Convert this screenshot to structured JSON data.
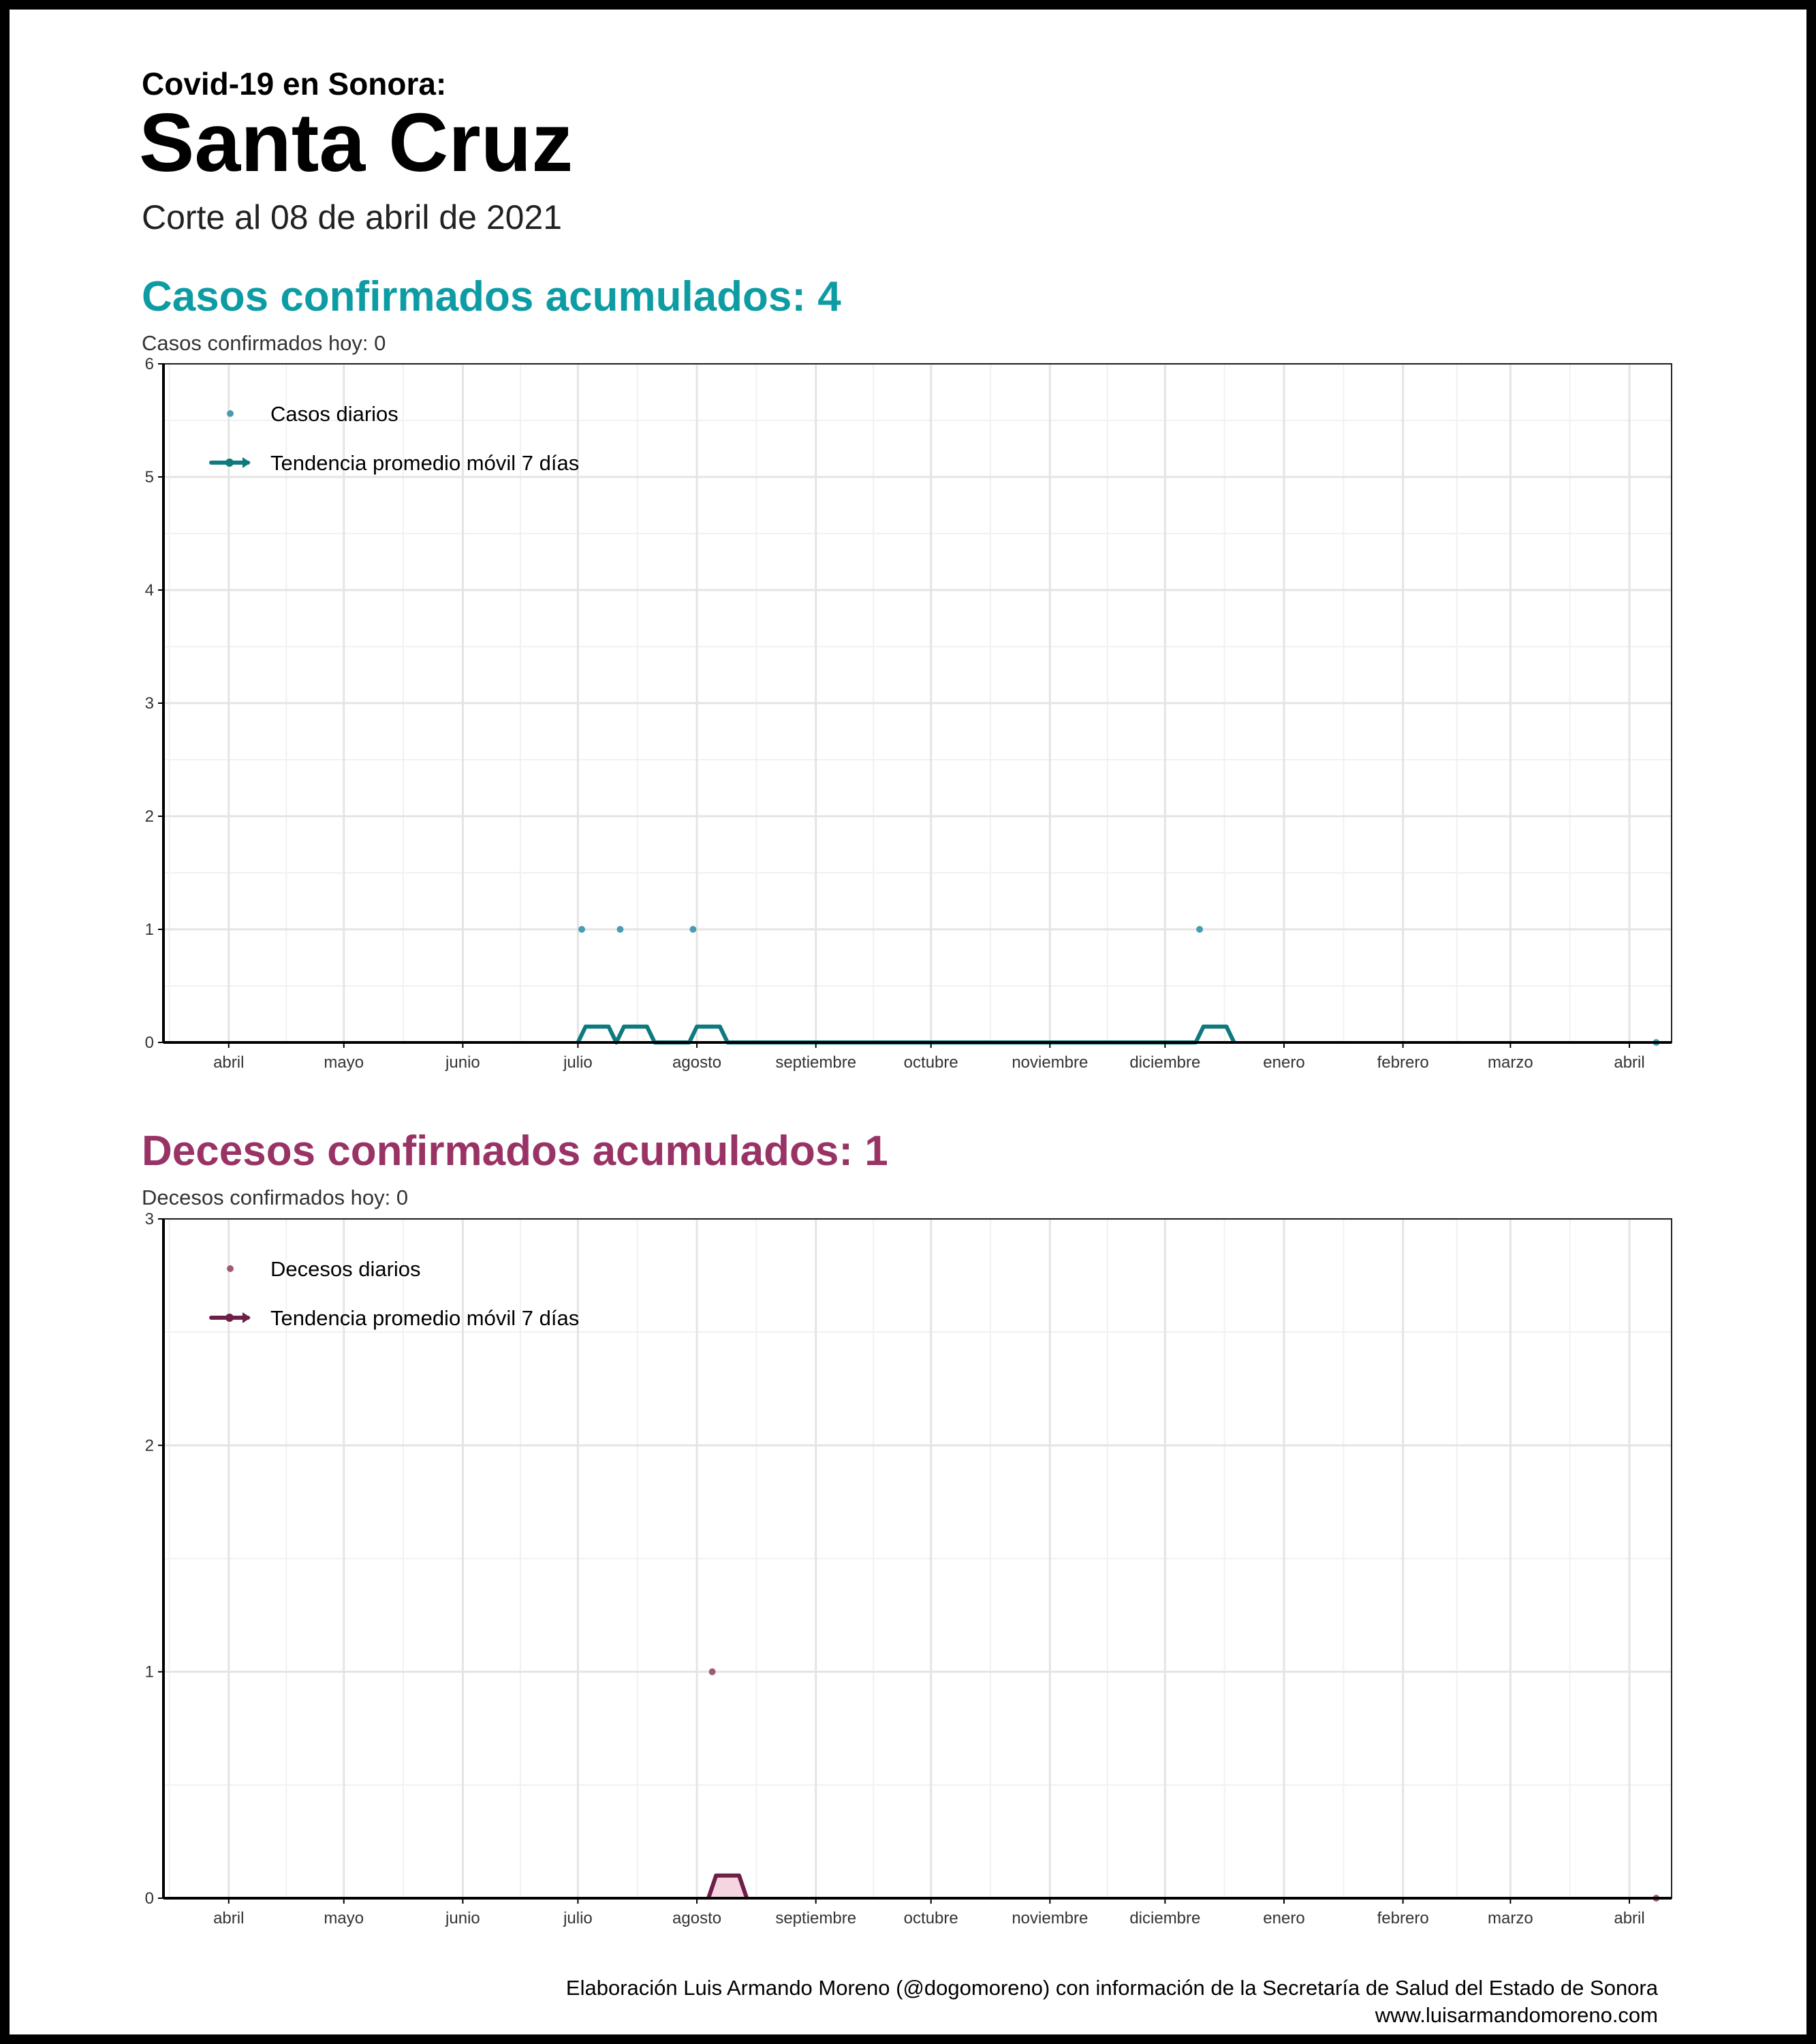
{
  "header": {
    "supertitle": "Covid-19 en Sonora:",
    "title": "Santa Cruz",
    "cut_date": "Corte al 08 de abril de 2021"
  },
  "cases": {
    "title": "Casos confirmados acumulados: 4",
    "today": "Casos confirmados hoy: 0",
    "legend_points": "Casos diarios",
    "legend_line": "Tendencia promedio móvil 7 días",
    "color_points": "#4a9db0",
    "color_line": "#0e7a7e"
  },
  "deaths": {
    "title": "Decesos confirmados acumulados: 1",
    "today": "Decesos confirmados hoy: 0",
    "legend_points": "Decesos diarios",
    "legend_line": "Tendencia promedio móvil 7 días",
    "color_points": "#a05a78",
    "color_line": "#6e1f47",
    "color_fill": "#f5d5e0"
  },
  "footer": {
    "credit": "Elaboración Luis Armando Moreno (@dogomoreno) con información de la Secretaría de Salud del Estado de Sonora",
    "url": "www.luisarmandomoreno.com"
  },
  "chart_data": [
    {
      "type": "scatter",
      "title": "Casos confirmados acumulados: 4",
      "subtitle": "Casos confirmados hoy: 0",
      "x_tick_labels": [
        "abril",
        "mayo",
        "junio",
        "julio",
        "agosto",
        "septiembre",
        "octubre",
        "noviembre",
        "diciembre",
        "enero",
        "febrero",
        "marzo",
        "abril"
      ],
      "x_tick_dates": [
        "2020-04-01",
        "2020-05-01",
        "2020-06-01",
        "2020-07-01",
        "2020-08-01",
        "2020-09-01",
        "2020-10-01",
        "2020-11-01",
        "2020-12-01",
        "2021-01-01",
        "2021-02-01",
        "2021-03-01",
        "2021-04-01"
      ],
      "xlim": [
        "2020-03-15",
        "2021-04-12"
      ],
      "ylim": [
        0,
        6
      ],
      "y_ticks": [
        0,
        1,
        2,
        3,
        4,
        5,
        6
      ],
      "grid": true,
      "legend_position": "top-left",
      "series": [
        {
          "name": "Casos diarios",
          "kind": "points",
          "x": [
            "2020-07-02",
            "2020-07-12",
            "2020-07-31",
            "2020-12-10",
            "2021-04-08"
          ],
          "y": [
            1,
            1,
            1,
            1,
            0
          ]
        },
        {
          "name": "Tendencia promedio móvil 7 días",
          "kind": "line",
          "x": [
            "2020-07-01",
            "2020-07-03",
            "2020-07-09",
            "2020-07-11",
            "2020-07-13",
            "2020-07-19",
            "2020-07-21",
            "2020-07-30",
            "2020-08-01",
            "2020-08-07",
            "2020-08-09",
            "2020-12-09",
            "2020-12-11",
            "2020-12-17",
            "2020-12-19"
          ],
          "y": [
            0,
            0.14,
            0.14,
            0,
            0.14,
            0.14,
            0,
            0,
            0.14,
            0.14,
            0,
            0,
            0.14,
            0.14,
            0
          ]
        }
      ]
    },
    {
      "type": "scatter",
      "title": "Decesos confirmados acumulados: 1",
      "subtitle": "Decesos confirmados hoy: 0",
      "x_tick_labels": [
        "abril",
        "mayo",
        "junio",
        "julio",
        "agosto",
        "septiembre",
        "octubre",
        "noviembre",
        "diciembre",
        "enero",
        "febrero",
        "marzo",
        "abril"
      ],
      "x_tick_dates": [
        "2020-04-01",
        "2020-05-01",
        "2020-06-01",
        "2020-07-01",
        "2020-08-01",
        "2020-09-01",
        "2020-10-01",
        "2020-11-01",
        "2020-12-01",
        "2021-01-01",
        "2021-02-01",
        "2021-03-01",
        "2021-04-01"
      ],
      "xlim": [
        "2020-03-15",
        "2021-04-12"
      ],
      "ylim": [
        0,
        3
      ],
      "y_ticks": [
        0,
        1,
        2,
        3
      ],
      "grid": true,
      "legend_position": "top-left",
      "series": [
        {
          "name": "Decesos diarios",
          "kind": "points",
          "x": [
            "2020-08-05",
            "2021-04-08"
          ],
          "y": [
            1,
            0
          ]
        },
        {
          "name": "Tendencia promedio móvil 7 días",
          "kind": "line",
          "x": [
            "2020-08-04",
            "2020-08-06",
            "2020-08-12",
            "2020-08-14"
          ],
          "y": [
            0,
            0.1,
            0.1,
            0
          ]
        }
      ]
    }
  ]
}
